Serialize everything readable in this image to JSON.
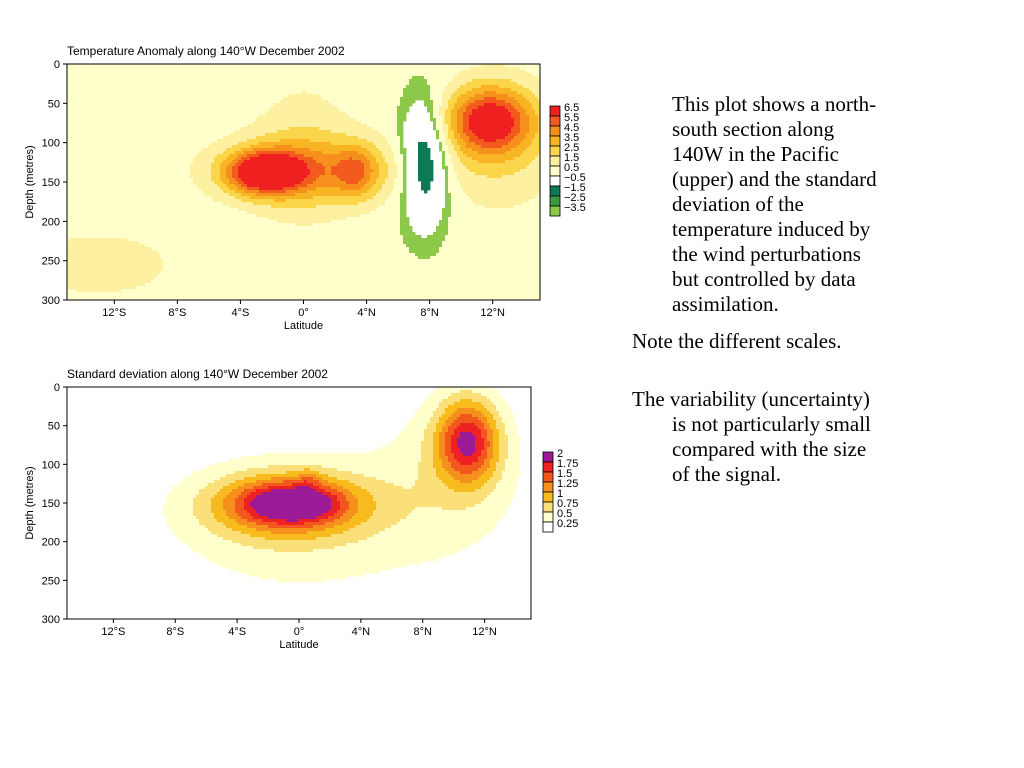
{
  "chart_data": [
    {
      "type": "heatmap",
      "title": "Temperature Anomaly along 140°W December 2002",
      "xlabel": "Latitude",
      "ylabel": "Depth (metres)",
      "xlim": [
        -15,
        15
      ],
      "ylim": [
        300,
        0
      ],
      "x_ticks": [
        {
          "value": -12,
          "label": "12°S"
        },
        {
          "value": -8,
          "label": "8°S"
        },
        {
          "value": -4,
          "label": "4°S"
        },
        {
          "value": 0,
          "label": "0°"
        },
        {
          "value": 4,
          "label": "4°N"
        },
        {
          "value": 8,
          "label": "8°N"
        },
        {
          "value": 12,
          "label": "12°N"
        }
      ],
      "y_ticks": [
        {
          "value": 0,
          "label": "0"
        },
        {
          "value": 50,
          "label": "50"
        },
        {
          "value": 100,
          "label": "100"
        },
        {
          "value": 150,
          "label": "150"
        },
        {
          "value": 200,
          "label": "200"
        },
        {
          "value": 250,
          "label": "250"
        },
        {
          "value": 300,
          "label": "300"
        }
      ],
      "legend": [
        {
          "label": "6.5",
          "color": "#ee2020"
        },
        {
          "label": "5.5",
          "color": "#f25a1e"
        },
        {
          "label": "4.5",
          "color": "#f5901c"
        },
        {
          "label": "3.5",
          "color": "#f8b422"
        },
        {
          "label": "2.5",
          "color": "#fbd64a"
        },
        {
          "label": "1.5",
          "color": "#fdf0a0"
        },
        {
          "label": "0.5",
          "color": "#ffffcc"
        },
        {
          "label": "−0.5",
          "color": "#ffffff"
        },
        {
          "label": "−1.5",
          "color": "#0d7a55"
        },
        {
          "label": "−2.5",
          "color": "#3c9a40"
        },
        {
          "label": "−3.5",
          "color": "#8cc84a"
        }
      ],
      "features": [
        {
          "x": -2.5,
          "y": 138,
          "sx": 1.6,
          "sy": 18,
          "amp": 6.9
        },
        {
          "x": 0.5,
          "y": 135,
          "sx": 4.2,
          "sy": 30,
          "amp": 3.2
        },
        {
          "x": 3.3,
          "y": 138,
          "sx": 0.9,
          "sy": 22,
          "amp": 2.6
        },
        {
          "x": 0,
          "y": 110,
          "sx": 2.4,
          "sy": 70,
          "amp": 1.2
        },
        {
          "x": 7.7,
          "y": 125,
          "sx": 1.1,
          "sy": 55,
          "amp": -3.9
        },
        {
          "x": 11.8,
          "y": 72,
          "sx": 1.9,
          "sy": 30,
          "amp": 6.0
        },
        {
          "x": 12.5,
          "y": 105,
          "sx": 3.0,
          "sy": 60,
          "amp": 1.6
        },
        {
          "x": -13,
          "y": 255,
          "sx": 3.5,
          "sy": 30,
          "amp": 1.4
        }
      ],
      "background": 0.8
    },
    {
      "type": "heatmap",
      "title": "Standard deviation along 140°W December 2002",
      "xlabel": "Latitude",
      "ylabel": "Depth (metres)",
      "xlim": [
        -15,
        15
      ],
      "ylim": [
        300,
        0
      ],
      "x_ticks": [
        {
          "value": -12,
          "label": "12°S"
        },
        {
          "value": -8,
          "label": "8°S"
        },
        {
          "value": -4,
          "label": "4°S"
        },
        {
          "value": 0,
          "label": "0°"
        },
        {
          "value": 4,
          "label": "4°N"
        },
        {
          "value": 8,
          "label": "8°N"
        },
        {
          "value": 12,
          "label": "12°N"
        }
      ],
      "y_ticks": [
        {
          "value": 0,
          "label": "0"
        },
        {
          "value": 50,
          "label": "50"
        },
        {
          "value": 100,
          "label": "100"
        },
        {
          "value": 150,
          "label": "150"
        },
        {
          "value": 200,
          "label": "200"
        },
        {
          "value": 250,
          "label": "250"
        },
        {
          "value": 300,
          "label": "300"
        }
      ],
      "legend": [
        {
          "label": "2",
          "color": "#9b1b96"
        },
        {
          "label": "1.75",
          "color": "#ee2222"
        },
        {
          "label": "1.5",
          "color": "#f2581e"
        },
        {
          "label": "1.25",
          "color": "#f5901c"
        },
        {
          "label": "1",
          "color": "#f8bb1e"
        },
        {
          "label": "0.75",
          "color": "#fbe07a"
        },
        {
          "label": "0.5",
          "color": "#ffffcc"
        },
        {
          "label": "0.25",
          "color": "#ffffff"
        }
      ],
      "features": [
        {
          "x": -0.8,
          "y": 152,
          "sx": 3.4,
          "sy": 28,
          "amp": 1.35
        },
        {
          "x": -0.3,
          "y": 150,
          "sx": 2.0,
          "sy": 16,
          "amp": 0.9
        },
        {
          "x": 0.6,
          "y": 118,
          "sx": 0.5,
          "sy": 9,
          "amp": 0.35
        },
        {
          "x": 10.9,
          "y": 70,
          "sx": 1.4,
          "sy": 38,
          "amp": 1.55
        },
        {
          "x": 0,
          "y": 180,
          "sx": 6.5,
          "sy": 70,
          "amp": 0.4
        },
        {
          "x": 10,
          "y": 110,
          "sx": 3.5,
          "sy": 75,
          "amp": 0.35
        }
      ],
      "background": 0.26
    }
  ],
  "notes": {
    "paragraph1": [
      "This plot shows a north-",
      "south section along",
      "140W in the Pacific",
      "(upper) and the standard",
      "deviation of the",
      "temperature induced by",
      "the wind perturbations",
      "but controlled by data",
      "assimilation."
    ],
    "paragraph2": "Note the different scales.",
    "paragraph3": [
      "The variability (uncertainty)",
      "is not particularly small",
      "compared with the size",
      "of the signal."
    ]
  }
}
